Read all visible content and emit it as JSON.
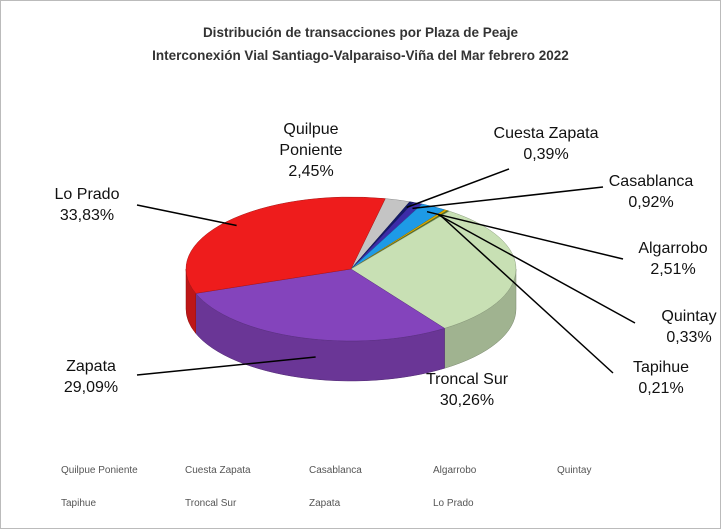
{
  "chart_data": {
    "type": "pie3d",
    "title": "Distribución de transacciones por Plaza de Peaje",
    "subtitle": "Interconexión Vial Santiago-Valparaiso-Viña del Mar febrero 2022",
    "categories": [
      "Quilpue Poniente",
      "Cuesta Zapata",
      "Casablanca",
      "Algarrobo",
      "Quintay",
      "Tapihue",
      "Troncal Sur",
      "Zapata",
      "Lo Prado"
    ],
    "values": [
      2.45,
      0.39,
      0.92,
      2.51,
      0.33,
      0.21,
      30.26,
      29.09,
      33.83
    ],
    "value_labels": [
      "2,45%",
      "0,39%",
      "0,92%",
      "2,51%",
      "0,33%",
      "0,21%",
      "30,26%",
      "29,09%",
      "33,83%"
    ],
    "colors": [
      "#c4c4c4",
      "#141a6a",
      "#3c2ca8",
      "#1e9ae6",
      "#d6a800",
      "#5a7a30",
      "#c8e0b4",
      "#8444bc",
      "#ee1c1c"
    ],
    "legend": "bottom"
  }
}
